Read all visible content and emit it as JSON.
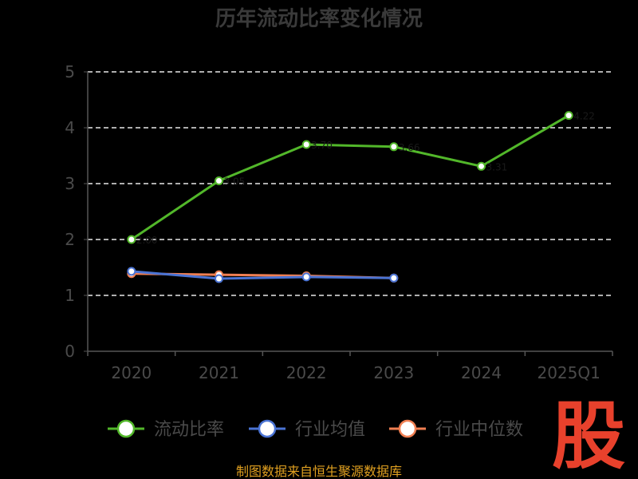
{
  "chart_data": {
    "type": "line",
    "title": "历年流动比率变化情况",
    "categories": [
      "2020",
      "2021",
      "2022",
      "2023",
      "2024",
      "2025Q1"
    ],
    "ylim": [
      0,
      5
    ],
    "yticks": [
      "0",
      "1",
      "2",
      "3",
      "4",
      "5"
    ],
    "grid": true,
    "legend_position": "bottom",
    "series": [
      {
        "name": "流动比率",
        "color": "#52b72a",
        "values": [
          2.0,
          3.05,
          3.7,
          3.66,
          3.31,
          4.22
        ],
        "point_labels": [
          "2.00",
          "3.05",
          "3.70",
          "3.66",
          "3.31",
          "4.22"
        ]
      },
      {
        "name": "行业均值",
        "color": "#4a73d4",
        "values": [
          1.43,
          1.3,
          1.33,
          1.31,
          null,
          null
        ]
      },
      {
        "name": "行业中位数",
        "color": "#f07f52",
        "values": [
          1.39,
          1.37,
          1.35,
          1.31,
          null,
          null
        ]
      }
    ]
  },
  "footer": "制图数据来自恒生聚源数据库",
  "brand_mark": "股"
}
